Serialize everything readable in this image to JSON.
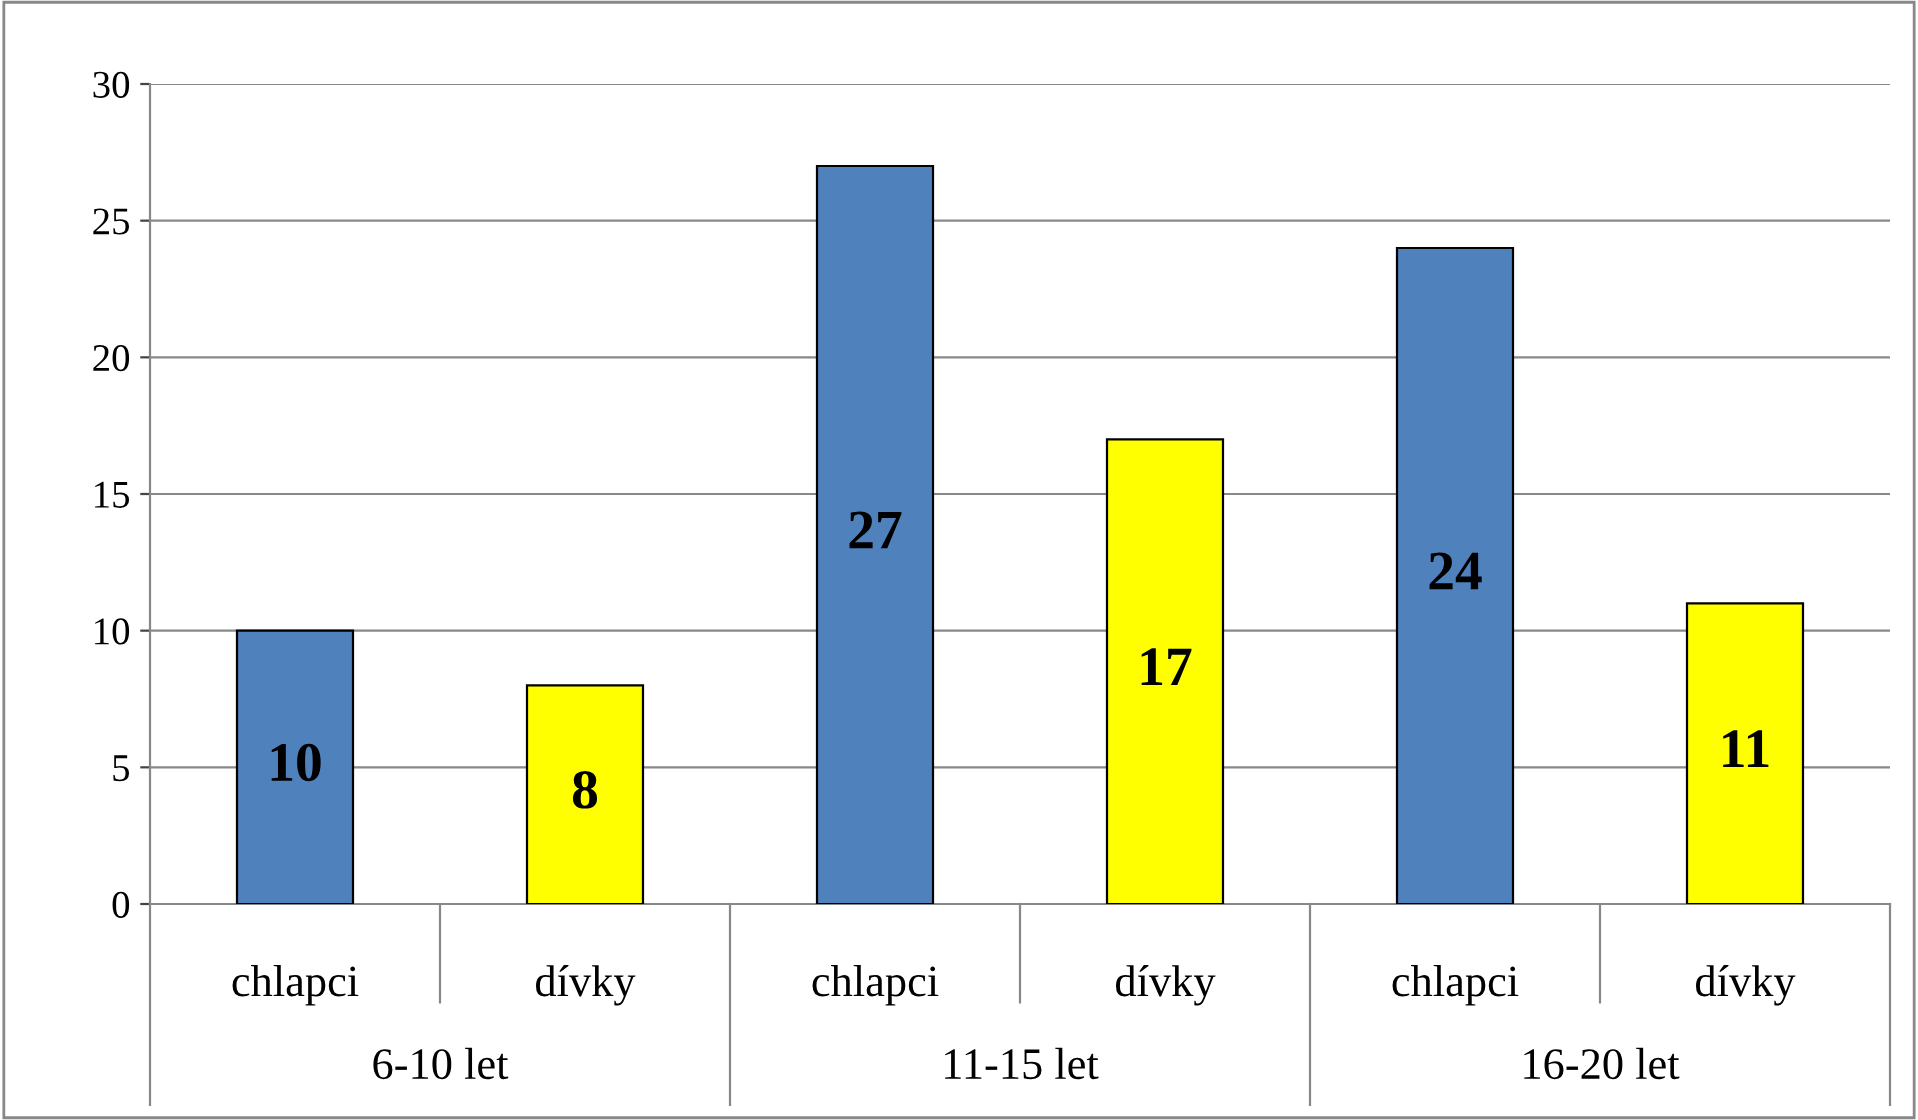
{
  "chart_data": {
    "type": "bar",
    "categories": [
      "chlapci",
      "dívky",
      "chlapci",
      "dívky",
      "chlapci",
      "dívky"
    ],
    "values": [
      10,
      8,
      27,
      17,
      24,
      11
    ],
    "colors": [
      "#4f81bd",
      "#ffff00",
      "#4f81bd",
      "#ffff00",
      "#4f81bd",
      "#ffff00"
    ],
    "ylim": [
      0,
      30
    ],
    "yticks": [
      0,
      5,
      10,
      15,
      20,
      25,
      30
    ],
    "grid": "y",
    "data_labels": true,
    "annotations": [
      "6-10 let",
      "11-15 let",
      "16-20 let"
    ]
  }
}
